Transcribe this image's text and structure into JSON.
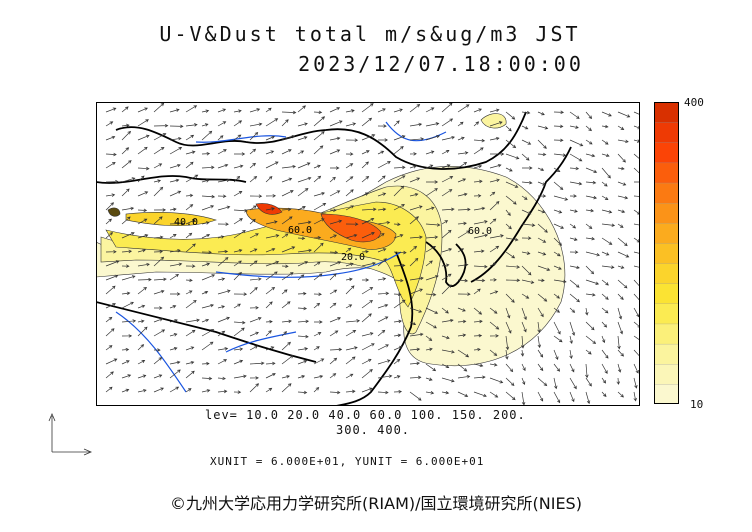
{
  "title": "U-V&Dust total m/s&ug/m3 JST",
  "datetime": "2023/12/07.18:00:00",
  "colorbar": {
    "max_label": "400",
    "min_label": "10",
    "colors": [
      "#fbf8cf",
      "#fbf6b8",
      "#fbf49e",
      "#fbf07a",
      "#fbeb52",
      "#fbe333",
      "#fbd42c",
      "#fbc024",
      "#fbab1e",
      "#fb9318",
      "#fb7a12",
      "#fb5e0c",
      "#fb4406",
      "#ee3a04",
      "#d83000"
    ]
  },
  "levels_line1": "lev= 10.0 20.0 40.0 60.0 100. 150. 200.",
  "levels_line2": "300. 400.",
  "units_line": "XUNIT = 6.000E+01, YUNIT = 6.000E+01",
  "map_labels": [
    "40.0",
    "60.0",
    "20.0",
    "60.0"
  ],
  "copyright": "©九州大学応用力学研究所(RIAM)/国立環境研究所(NIES)",
  "colors": {
    "coast": "#000000",
    "rivers": "#1a55e0",
    "grid": "#555555",
    "arrows": "#333333"
  }
}
